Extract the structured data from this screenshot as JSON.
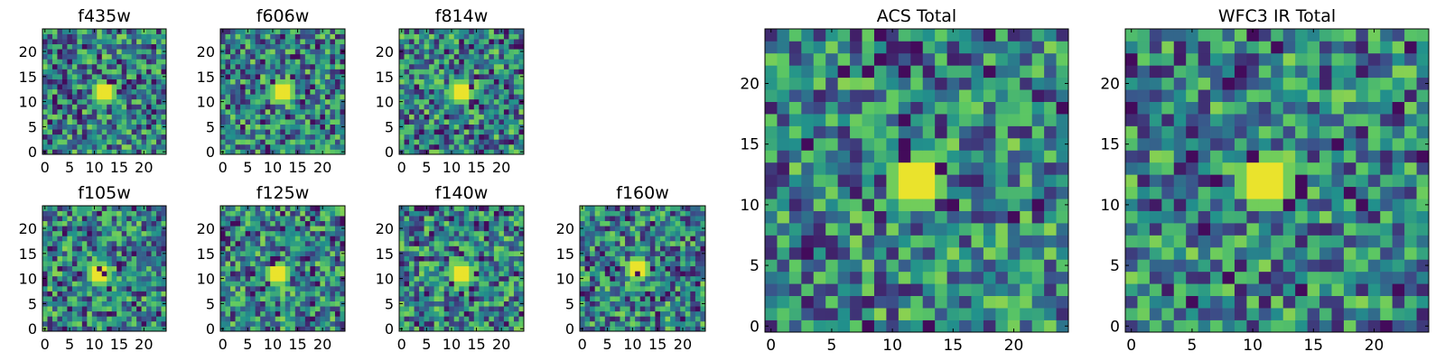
{
  "figure": {
    "colormap": [
      "#440154",
      "#3b528b",
      "#21918c",
      "#5ec962",
      "#fde725"
    ]
  },
  "chart_data": [
    {
      "type": "heatmap",
      "title": "f435w",
      "grid_size": [
        25,
        25
      ],
      "xlim": [
        0,
        24
      ],
      "ylim": [
        0,
        24
      ],
      "xticks": [
        0,
        5,
        10,
        15,
        20
      ],
      "yticks": [
        0,
        5,
        10,
        15,
        20
      ],
      "peak": {
        "x": 12,
        "y": 12
      }
    },
    {
      "type": "heatmap",
      "title": "f606w",
      "grid_size": [
        25,
        25
      ],
      "xlim": [
        0,
        24
      ],
      "ylim": [
        0,
        24
      ],
      "xticks": [
        0,
        5,
        10,
        15,
        20
      ],
      "yticks": [
        0,
        5,
        10,
        15,
        20
      ],
      "peak": {
        "x": 12,
        "y": 12
      }
    },
    {
      "type": "heatmap",
      "title": "f814w",
      "grid_size": [
        25,
        25
      ],
      "xlim": [
        0,
        24
      ],
      "ylim": [
        0,
        24
      ],
      "xticks": [
        0,
        5,
        10,
        15,
        20
      ],
      "yticks": [
        0,
        5,
        10,
        15,
        20
      ],
      "peak": {
        "x": 12,
        "y": 12
      }
    },
    {
      "type": "heatmap",
      "title": "f105w",
      "grid_size": [
        25,
        25
      ],
      "xlim": [
        0,
        24
      ],
      "ylim": [
        0,
        24
      ],
      "xticks": [
        0,
        5,
        10,
        15,
        20
      ],
      "yticks": [
        0,
        5,
        10,
        15,
        20
      ],
      "peak": {
        "x": 11,
        "y": 11
      }
    },
    {
      "type": "heatmap",
      "title": "f125w",
      "grid_size": [
        25,
        25
      ],
      "xlim": [
        0,
        24
      ],
      "ylim": [
        0,
        24
      ],
      "xticks": [
        0,
        5,
        10,
        15,
        20
      ],
      "yticks": [
        0,
        5,
        10,
        15,
        20
      ],
      "peak": {
        "x": 11,
        "y": 11
      }
    },
    {
      "type": "heatmap",
      "title": "f140w",
      "grid_size": [
        25,
        25
      ],
      "xlim": [
        0,
        24
      ],
      "ylim": [
        0,
        24
      ],
      "xticks": [
        0,
        5,
        10,
        15,
        20
      ],
      "yticks": [
        0,
        5,
        10,
        15,
        20
      ],
      "peak": {
        "x": 12,
        "y": 11
      }
    },
    {
      "type": "heatmap",
      "title": "f160w",
      "grid_size": [
        25,
        25
      ],
      "xlim": [
        0,
        24
      ],
      "ylim": [
        0,
        24
      ],
      "xticks": [
        0,
        5,
        10,
        15,
        20
      ],
      "yticks": [
        0,
        5,
        10,
        15,
        20
      ],
      "peak": {
        "x": 11,
        "y": 12
      }
    },
    {
      "type": "heatmap",
      "title": "ACS Total",
      "grid_size": [
        25,
        25
      ],
      "xlim": [
        0,
        24
      ],
      "ylim": [
        0,
        24
      ],
      "xticks": [
        0,
        5,
        10,
        15,
        20
      ],
      "yticks": [
        0,
        5,
        10,
        15,
        20
      ],
      "peak": {
        "x": 12,
        "y": 12
      }
    },
    {
      "type": "heatmap",
      "title": "WFC3 IR Total",
      "grid_size": [
        25,
        25
      ],
      "xlim": [
        0,
        24
      ],
      "ylim": [
        0,
        24
      ],
      "xticks": [
        0,
        5,
        10,
        15,
        20
      ],
      "yticks": [
        0,
        5,
        10,
        15,
        20
      ],
      "peak": {
        "x": 11,
        "y": 12
      }
    }
  ]
}
